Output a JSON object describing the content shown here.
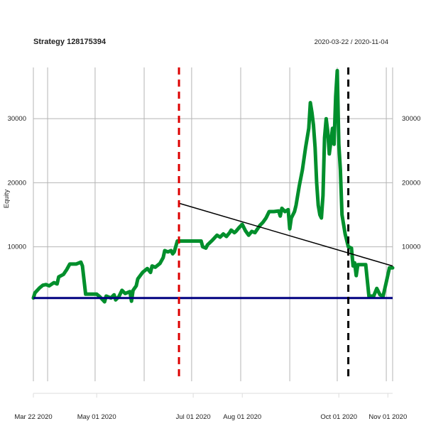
{
  "chart_data": {
    "type": "line",
    "title": "Strategy 128175394",
    "date_range": "2020-03-22 / 2020-11-04",
    "ylabel": "Equity",
    "xlabel": "",
    "x_domain": [
      "2020-03-22",
      "2020-11-04"
    ],
    "ylim": [
      -11000,
      38000
    ],
    "y_ticks": [
      {
        "value": 10000,
        "label": "10000"
      },
      {
        "value": 20000,
        "label": "20000"
      },
      {
        "value": 30000,
        "label": "30000"
      }
    ],
    "x_ticks": [
      {
        "date": "2020-03-22",
        "label": "Mar 22 2020"
      },
      {
        "date": "2020-05-01",
        "label": "May 01 2020"
      },
      {
        "date": "2020-07-01",
        "label": "Jul 01 2020"
      },
      {
        "date": "2020-08-01",
        "label": "Aug 01 2020"
      },
      {
        "date": "2020-10-01",
        "label": "Oct 01 2020"
      },
      {
        "date": "2020-11-01",
        "label": "Nov 01 2020"
      }
    ],
    "v_gridlines": [
      "2020-03-22",
      "2020-03-31",
      "2020-04-30",
      "2020-05-31",
      "2020-06-30",
      "2020-07-31",
      "2020-08-31",
      "2020-09-30",
      "2020-10-31",
      "2020-11-04"
    ],
    "baseline": {
      "value": 2000,
      "color": "#000080"
    },
    "vlines": [
      {
        "date": "2020-06-22",
        "color": "#dd0000"
      },
      {
        "date": "2020-10-07",
        "color": "#000000"
      }
    ],
    "trend_line": {
      "from": [
        "2020-06-22",
        16800
      ],
      "to": [
        "2020-11-04",
        7000
      ],
      "color": "#000000"
    },
    "series": [
      {
        "name": "Equity",
        "color": "#008f2c",
        "points": [
          [
            "2020-03-22",
            2000
          ],
          [
            "2020-03-23",
            2800
          ],
          [
            "2020-03-26",
            3600
          ],
          [
            "2020-03-28",
            4000
          ],
          [
            "2020-03-30",
            4100
          ],
          [
            "2020-04-01",
            3900
          ],
          [
            "2020-04-04",
            4400
          ],
          [
            "2020-04-06",
            4200
          ],
          [
            "2020-04-07",
            5300
          ],
          [
            "2020-04-10",
            5700
          ],
          [
            "2020-04-12",
            6400
          ],
          [
            "2020-04-14",
            7300
          ],
          [
            "2020-04-18",
            7300
          ],
          [
            "2020-04-21",
            7600
          ],
          [
            "2020-04-22",
            7000
          ],
          [
            "2020-04-24",
            2600
          ],
          [
            "2020-05-01",
            2600
          ],
          [
            "2020-05-03",
            2200
          ],
          [
            "2020-05-06",
            1400
          ],
          [
            "2020-05-07",
            2300
          ],
          [
            "2020-05-10",
            2000
          ],
          [
            "2020-05-12",
            2500
          ],
          [
            "2020-05-13",
            1700
          ],
          [
            "2020-05-15",
            2200
          ],
          [
            "2020-05-17",
            3200
          ],
          [
            "2020-05-19",
            2700
          ],
          [
            "2020-05-22",
            3000
          ],
          [
            "2020-05-23",
            1500
          ],
          [
            "2020-05-24",
            3200
          ],
          [
            "2020-05-26",
            3900
          ],
          [
            "2020-05-27",
            5000
          ],
          [
            "2020-05-30",
            6000
          ],
          [
            "2020-06-02",
            6600
          ],
          [
            "2020-06-04",
            6000
          ],
          [
            "2020-06-05",
            7000
          ],
          [
            "2020-06-07",
            6800
          ],
          [
            "2020-06-10",
            7400
          ],
          [
            "2020-06-12",
            8300
          ],
          [
            "2020-06-13",
            9400
          ],
          [
            "2020-06-15",
            9200
          ],
          [
            "2020-06-17",
            9400
          ],
          [
            "2020-06-18",
            8900
          ],
          [
            "2020-06-19",
            9200
          ],
          [
            "2020-06-21",
            10900
          ],
          [
            "2020-07-06",
            10900
          ],
          [
            "2020-07-07",
            10000
          ],
          [
            "2020-07-09",
            9800
          ],
          [
            "2020-07-10",
            10300
          ],
          [
            "2020-07-13",
            11000
          ],
          [
            "2020-07-16",
            11800
          ],
          [
            "2020-07-18",
            11500
          ],
          [
            "2020-07-20",
            12000
          ],
          [
            "2020-07-22",
            11600
          ],
          [
            "2020-07-24",
            12200
          ],
          [
            "2020-07-25",
            12600
          ],
          [
            "2020-07-27",
            12200
          ],
          [
            "2020-07-28",
            12400
          ],
          [
            "2020-07-30",
            13000
          ],
          [
            "2020-08-01",
            13500
          ],
          [
            "2020-08-03",
            12500
          ],
          [
            "2020-08-05",
            11800
          ],
          [
            "2020-08-07",
            12400
          ],
          [
            "2020-08-09",
            12200
          ],
          [
            "2020-08-12",
            13300
          ],
          [
            "2020-08-14",
            13800
          ],
          [
            "2020-08-16",
            14500
          ],
          [
            "2020-08-18",
            15500
          ],
          [
            "2020-08-21",
            15500
          ],
          [
            "2020-08-24",
            15600
          ],
          [
            "2020-08-25",
            14800
          ],
          [
            "2020-08-26",
            16000
          ],
          [
            "2020-08-28",
            15500
          ],
          [
            "2020-08-30",
            15800
          ],
          [
            "2020-08-31",
            12800
          ],
          [
            "2020-09-01",
            14500
          ],
          [
            "2020-09-03",
            15500
          ],
          [
            "2020-09-04",
            16500
          ],
          [
            "2020-09-06",
            19500
          ],
          [
            "2020-09-08",
            22000
          ],
          [
            "2020-09-10",
            25500
          ],
          [
            "2020-09-12",
            28500
          ],
          [
            "2020-09-13",
            32500
          ],
          [
            "2020-09-14",
            31000
          ],
          [
            "2020-09-15",
            29000
          ],
          [
            "2020-09-16",
            25500
          ],
          [
            "2020-09-17",
            20000
          ],
          [
            "2020-09-18",
            16500
          ],
          [
            "2020-09-19",
            15000
          ],
          [
            "2020-09-20",
            14500
          ],
          [
            "2020-09-21",
            18000
          ],
          [
            "2020-09-22",
            27000
          ],
          [
            "2020-09-23",
            30000
          ],
          [
            "2020-09-24",
            28000
          ],
          [
            "2020-09-25",
            24500
          ],
          [
            "2020-09-27",
            28500
          ],
          [
            "2020-09-28",
            26000
          ],
          [
            "2020-09-29",
            33500
          ],
          [
            "2020-09-30",
            37500
          ],
          [
            "2020-10-01",
            26000
          ],
          [
            "2020-10-02",
            22000
          ],
          [
            "2020-10-03",
            15000
          ],
          [
            "2020-10-05",
            12000
          ],
          [
            "2020-10-07",
            10000
          ],
          [
            "2020-10-09",
            9800
          ],
          [
            "2020-10-10",
            7000
          ],
          [
            "2020-10-11",
            7500
          ],
          [
            "2020-10-12",
            5500
          ],
          [
            "2020-10-13",
            7200
          ],
          [
            "2020-10-18",
            7200
          ],
          [
            "2020-10-20",
            2300
          ],
          [
            "2020-10-23",
            2300
          ],
          [
            "2020-10-25",
            3500
          ],
          [
            "2020-10-27",
            2500
          ],
          [
            "2020-10-29",
            2300
          ],
          [
            "2020-10-31",
            4500
          ],
          [
            "2020-11-02",
            6700
          ],
          [
            "2020-11-04",
            6700
          ]
        ]
      }
    ]
  }
}
